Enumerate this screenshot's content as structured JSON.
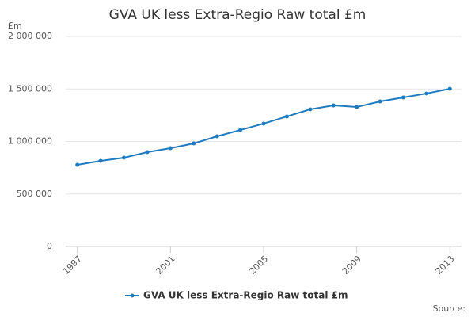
{
  "chart_data": {
    "type": "line",
    "title": "GVA UK less Extra-Regio Raw total £m",
    "y_label": "£m",
    "source": "Source:",
    "x": [
      1997,
      1998,
      1999,
      2000,
      2001,
      2002,
      2003,
      2004,
      2005,
      2006,
      2007,
      2008,
      2009,
      2010,
      2011,
      2012,
      2013
    ],
    "series": [
      {
        "name": "GVA UK less Extra-Regio Raw total £m",
        "color": "#1f7bbf",
        "values": [
          777000,
          815000,
          845000,
          898000,
          936000,
          981000,
          1049000,
          1109000,
          1170000,
          1238000,
          1306000,
          1343000,
          1328000,
          1381000,
          1419000,
          1457000,
          1502000
        ]
      }
    ],
    "xlim": [
      1996.5,
      2013.5
    ],
    "xticks": [
      1997,
      2001,
      2005,
      2009,
      2013
    ],
    "ylim": [
      0,
      2000000
    ],
    "yticks": [
      0,
      {
        "value": 500000,
        "label": "500 000"
      },
      {
        "value": 1000000,
        "label": "1 000 000"
      },
      {
        "value": 1500000,
        "label": "1 500 000"
      },
      {
        "value": 2000000,
        "label": "2 000 000"
      }
    ],
    "grid": true
  }
}
